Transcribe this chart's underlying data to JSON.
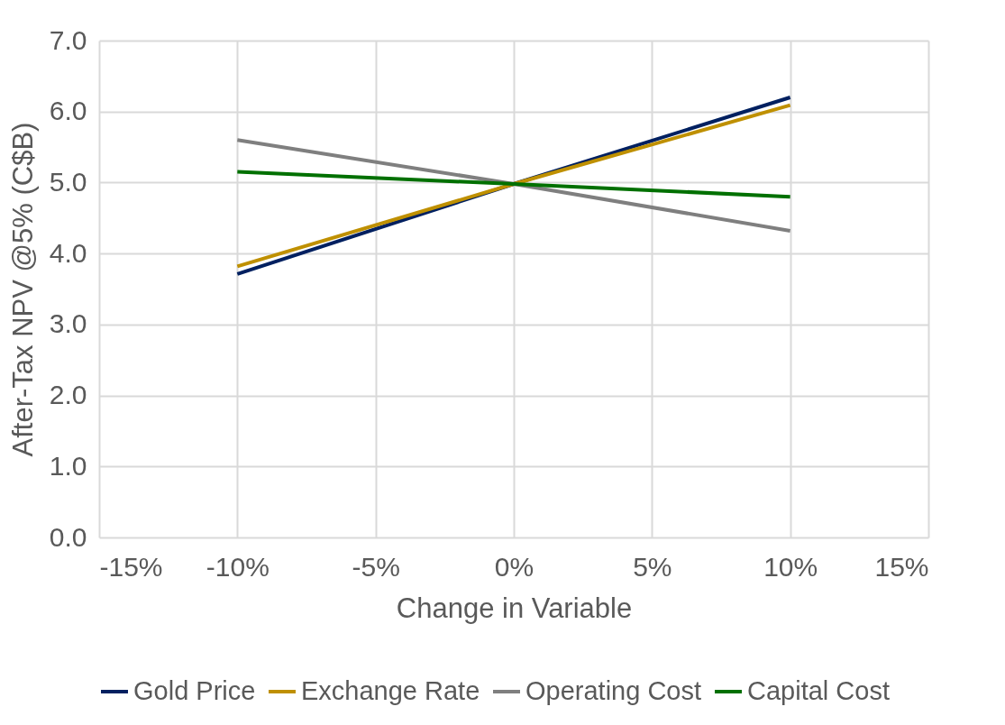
{
  "chart_data": {
    "type": "line",
    "xlabel": "Change in Variable",
    "ylabel": "After-Tax NPV @5% (C$B)",
    "xlim": [
      -15,
      15
    ],
    "xticks": [
      {
        "value": -15,
        "label": "-15%"
      },
      {
        "value": -10,
        "label": "-10%"
      },
      {
        "value": -5,
        "label": "-5%"
      },
      {
        "value": 0,
        "label": "0%"
      },
      {
        "value": 5,
        "label": "5%"
      },
      {
        "value": 10,
        "label": "10%"
      },
      {
        "value": 15,
        "label": "15%"
      }
    ],
    "ylim": [
      0,
      7
    ],
    "yticks": [
      {
        "value": 0,
        "label": "0.0"
      },
      {
        "value": 1,
        "label": "1.0"
      },
      {
        "value": 2,
        "label": "2.0"
      },
      {
        "value": 3,
        "label": "3.0"
      },
      {
        "value": 4,
        "label": "4.0"
      },
      {
        "value": 5,
        "label": "5.0"
      },
      {
        "value": 6,
        "label": "6.0"
      },
      {
        "value": 7,
        "label": "7.0"
      }
    ],
    "x": [
      -10,
      0,
      10
    ],
    "series": [
      {
        "name": "Gold Price",
        "color": "#002060",
        "values": [
          3.71,
          4.98,
          6.2
        ]
      },
      {
        "name": "Exchange Rate",
        "color": "#bf9000",
        "values": [
          3.82,
          4.98,
          6.09
        ]
      },
      {
        "name": "Operating Cost",
        "color": "#7f7f7f",
        "values": [
          5.6,
          4.98,
          4.32
        ]
      },
      {
        "name": "Capital Cost",
        "color": "#007000",
        "values": [
          5.15,
          4.98,
          4.8
        ]
      }
    ],
    "grid": true,
    "legend": "bottom",
    "line_style": "solid"
  }
}
